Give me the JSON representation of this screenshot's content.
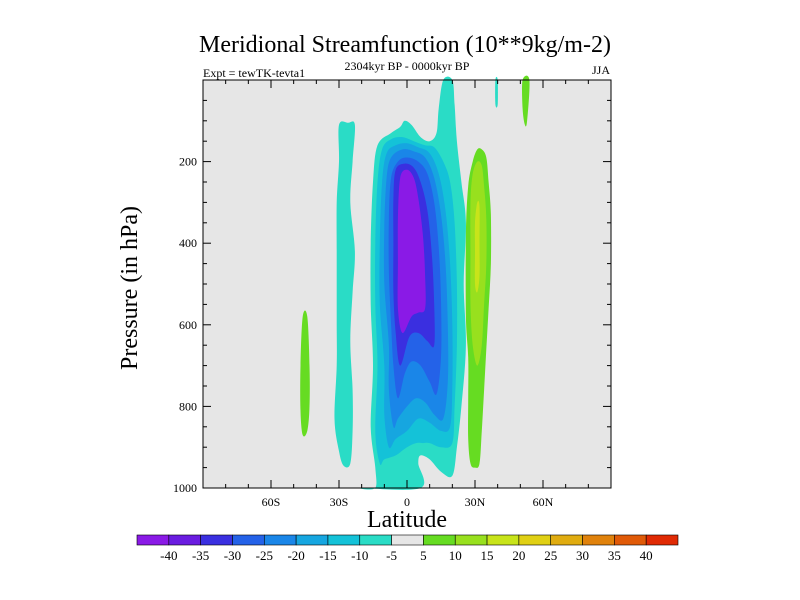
{
  "chart_data": {
    "type": "contour",
    "title": "Meridional Streamfunction (10**9kg/m-2)",
    "left_subtitle": "Expt = tewTK-tevta1",
    "center_subtitle": "2304kyr BP - 0000kyr BP",
    "right_subtitle": "JJA",
    "xlabel": "Latitude",
    "ylabel": "Pressure (in hPa)",
    "xlim": [
      -90,
      90
    ],
    "ylim": [
      1000,
      0
    ],
    "x_ticks": [
      {
        "value": -60,
        "label": "60S"
      },
      {
        "value": -30,
        "label": "30S"
      },
      {
        "value": 0,
        "label": "0"
      },
      {
        "value": 30,
        "label": "30N"
      },
      {
        "value": 60,
        "label": "60N"
      }
    ],
    "y_ticks": [
      {
        "value": 200,
        "label": "200"
      },
      {
        "value": 400,
        "label": "400"
      },
      {
        "value": 600,
        "label": "600"
      },
      {
        "value": 800,
        "label": "800"
      },
      {
        "value": 1000,
        "label": "1000"
      }
    ],
    "colorbar": {
      "labels": [
        "-40",
        "-35",
        "-30",
        "-25",
        "-20",
        "-15",
        "-10",
        "-5",
        "5",
        "10",
        "15",
        "20",
        "25",
        "30",
        "35",
        "40"
      ],
      "colors": [
        "#8a1ae6",
        "#6a1ce0",
        "#3a2fe0",
        "#2462e8",
        "#1a86e8",
        "#16a6e0",
        "#14c2d8",
        "#2adcc6",
        "#e6e6e6",
        "#66dc22",
        "#98e01e",
        "#c8e41a",
        "#e0d014",
        "#e0ac10",
        "#e0820c",
        "#e05a08",
        "#e02a04"
      ]
    },
    "contours": [
      {
        "name": "ant-v-10",
        "color": "#2adcc6",
        "points": [
          [
            -20,
            1000
          ],
          [
            -14,
            1000
          ],
          [
            -14,
            950
          ],
          [
            -16,
            850
          ],
          [
            -15,
            700
          ],
          [
            -16,
            550
          ],
          [
            -16,
            400
          ],
          [
            -15,
            250
          ],
          [
            -13,
            160
          ],
          [
            -7,
            130
          ],
          [
            -3,
            115
          ],
          [
            -1,
            100
          ],
          [
            2,
            110
          ],
          [
            6,
            140
          ],
          [
            10,
            150
          ],
          [
            13,
            130
          ],
          [
            14,
            70
          ],
          [
            16,
            0
          ],
          [
            20,
            0
          ],
          [
            21,
            60
          ],
          [
            22,
            150
          ],
          [
            24,
            250
          ],
          [
            26,
            350
          ],
          [
            25,
            500
          ],
          [
            26,
            650
          ],
          [
            24,
            800
          ],
          [
            22,
            900
          ],
          [
            20,
            970
          ],
          [
            15,
            960
          ],
          [
            10,
            930
          ],
          [
            6,
            920
          ],
          [
            5,
            940
          ],
          [
            6,
            1000
          ]
        ]
      },
      {
        "name": "ant-v-15",
        "color": "#14c2d8",
        "points": [
          [
            -12,
            940
          ],
          [
            -14,
            860
          ],
          [
            -13,
            700
          ],
          [
            -14,
            550
          ],
          [
            -14,
            400
          ],
          [
            -13,
            250
          ],
          [
            -11,
            170
          ],
          [
            -7,
            145
          ],
          [
            -2,
            140
          ],
          [
            3,
            150
          ],
          [
            8,
            160
          ],
          [
            12,
            165
          ],
          [
            16,
            200
          ],
          [
            19,
            250
          ],
          [
            21,
            350
          ],
          [
            22,
            500
          ],
          [
            22,
            650
          ],
          [
            21,
            800
          ],
          [
            20,
            890
          ],
          [
            15,
            900
          ],
          [
            10,
            890
          ],
          [
            7,
            890
          ],
          [
            4,
            890
          ],
          [
            0,
            900
          ],
          [
            -5,
            920
          ],
          [
            -10,
            930
          ]
        ]
      },
      {
        "name": "ant-v-20",
        "color": "#16a6e0",
        "points": [
          [
            -8,
            900
          ],
          [
            -10,
            820
          ],
          [
            -10,
            700
          ],
          [
            -12,
            550
          ],
          [
            -12,
            400
          ],
          [
            -11,
            250
          ],
          [
            -9,
            180
          ],
          [
            -5,
            160
          ],
          [
            0,
            155
          ],
          [
            5,
            165
          ],
          [
            10,
            180
          ],
          [
            14,
            230
          ],
          [
            17,
            320
          ],
          [
            19,
            450
          ],
          [
            20,
            600
          ],
          [
            20,
            750
          ],
          [
            19,
            850
          ],
          [
            15,
            860
          ],
          [
            10,
            840
          ],
          [
            5,
            830
          ],
          [
            0,
            860
          ],
          [
            -5,
            880
          ]
        ]
      },
      {
        "name": "ant-v-25",
        "color": "#1a86e8",
        "points": [
          [
            -6,
            850
          ],
          [
            -8,
            760
          ],
          [
            -8,
            650
          ],
          [
            -10,
            500
          ],
          [
            -10,
            360
          ],
          [
            -9,
            240
          ],
          [
            -7,
            190
          ],
          [
            -2,
            170
          ],
          [
            3,
            175
          ],
          [
            8,
            190
          ],
          [
            12,
            240
          ],
          [
            15,
            330
          ],
          [
            17,
            450
          ],
          [
            18,
            600
          ],
          [
            18,
            740
          ],
          [
            16,
            830
          ],
          [
            12,
            820
          ],
          [
            8,
            790
          ],
          [
            4,
            780
          ],
          [
            0,
            800
          ],
          [
            -4,
            830
          ]
        ]
      },
      {
        "name": "ant-v-30",
        "color": "#2462e8",
        "points": [
          [
            -4,
            780
          ],
          [
            -6,
            700
          ],
          [
            -7,
            600
          ],
          [
            -8,
            470
          ],
          [
            -8,
            340
          ],
          [
            -7,
            240
          ],
          [
            -4,
            200
          ],
          [
            0,
            190
          ],
          [
            5,
            200
          ],
          [
            9,
            230
          ],
          [
            12,
            300
          ],
          [
            14,
            410
          ],
          [
            15,
            540
          ],
          [
            15,
            680
          ],
          [
            13,
            770
          ],
          [
            10,
            740
          ],
          [
            6,
            700
          ],
          [
            2,
            690
          ],
          [
            -1,
            720
          ]
        ]
      },
      {
        "name": "ant-v-35",
        "color": "#3a2fe0",
        "points": [
          [
            -3,
            700
          ],
          [
            -5,
            620
          ],
          [
            -6,
            520
          ],
          [
            -6,
            400
          ],
          [
            -6,
            290
          ],
          [
            -5,
            220
          ],
          [
            -1,
            205
          ],
          [
            3,
            215
          ],
          [
            6,
            250
          ],
          [
            9,
            320
          ],
          [
            11,
            430
          ],
          [
            12,
            550
          ],
          [
            12,
            650
          ],
          [
            9,
            640
          ],
          [
            5,
            620
          ],
          [
            1,
            630
          ]
        ]
      },
      {
        "name": "ant-v-40",
        "color": "#8a1ae6",
        "points": [
          [
            -2,
            620
          ],
          [
            -4,
            560
          ],
          [
            -4,
            450
          ],
          [
            -4,
            340
          ],
          [
            -3,
            240
          ],
          [
            0,
            220
          ],
          [
            3,
            240
          ],
          [
            5,
            290
          ],
          [
            7,
            380
          ],
          [
            8,
            480
          ],
          [
            8,
            560
          ],
          [
            5,
            570
          ],
          [
            2,
            580
          ]
        ]
      },
      {
        "name": "ant-s-10",
        "color": "#2adcc6",
        "points": [
          [
            -30,
            110
          ],
          [
            -26,
            105
          ],
          [
            -23,
            110
          ],
          [
            -24,
            200
          ],
          [
            -25,
            300
          ],
          [
            -23,
            420
          ],
          [
            -24,
            520
          ],
          [
            -25,
            640
          ],
          [
            -24,
            760
          ],
          [
            -24,
            860
          ],
          [
            -25,
            940
          ],
          [
            -28,
            945
          ],
          [
            -30,
            910
          ],
          [
            -32,
            830
          ],
          [
            -31,
            700
          ],
          [
            -31,
            600
          ],
          [
            -31,
            520
          ],
          [
            -31,
            420
          ],
          [
            -31,
            300
          ],
          [
            -30,
            200
          ]
        ]
      },
      {
        "name": "ant-s-5",
        "color": "#66dc22",
        "points": [
          [
            -46,
            580
          ],
          [
            -44,
            580
          ],
          [
            -43,
            700
          ],
          [
            -43,
            800
          ],
          [
            -44,
            860
          ],
          [
            -46,
            870
          ],
          [
            -47,
            810
          ],
          [
            -47,
            700
          ]
        ]
      },
      {
        "name": "north-5",
        "color": "#66dc22",
        "points": [
          [
            26,
            380
          ],
          [
            27,
            260
          ],
          [
            29,
            200
          ],
          [
            31,
            170
          ],
          [
            33,
            170
          ],
          [
            35,
            190
          ],
          [
            36,
            250
          ],
          [
            37,
            330
          ],
          [
            37,
            450
          ],
          [
            36,
            560
          ],
          [
            35,
            660
          ],
          [
            34,
            760
          ],
          [
            33,
            860
          ],
          [
            32,
            940
          ],
          [
            30,
            950
          ],
          [
            28,
            940
          ],
          [
            27,
            880
          ],
          [
            27,
            780
          ],
          [
            27,
            680
          ],
          [
            26,
            580
          ]
        ]
      },
      {
        "name": "north-10",
        "color": "#98e01e",
        "points": [
          [
            28,
            300
          ],
          [
            29,
            230
          ],
          [
            31,
            200
          ],
          [
            33,
            210
          ],
          [
            34,
            260
          ],
          [
            35,
            340
          ],
          [
            35,
            450
          ],
          [
            34,
            550
          ],
          [
            33,
            650
          ],
          [
            31,
            700
          ],
          [
            29,
            650
          ],
          [
            28,
            550
          ],
          [
            28,
            430
          ]
        ]
      },
      {
        "name": "north-15",
        "color": "#c8e41a",
        "points": [
          [
            30,
            350
          ],
          [
            31,
            300
          ],
          [
            32,
            310
          ],
          [
            32,
            400
          ],
          [
            32,
            480
          ],
          [
            31,
            520
          ],
          [
            30,
            500
          ],
          [
            30,
            420
          ]
        ]
      },
      {
        "name": "north-top-5",
        "color": "#66dc22",
        "points": [
          [
            51,
            0
          ],
          [
            54,
            0
          ],
          [
            53,
            100
          ],
          [
            52,
            110
          ],
          [
            51,
            70
          ]
        ]
      },
      {
        "name": "north-top-10",
        "color": "#2adcc6",
        "points": [
          [
            39,
            0
          ],
          [
            40,
            0
          ],
          [
            40,
            60
          ],
          [
            39,
            60
          ]
        ]
      }
    ]
  }
}
